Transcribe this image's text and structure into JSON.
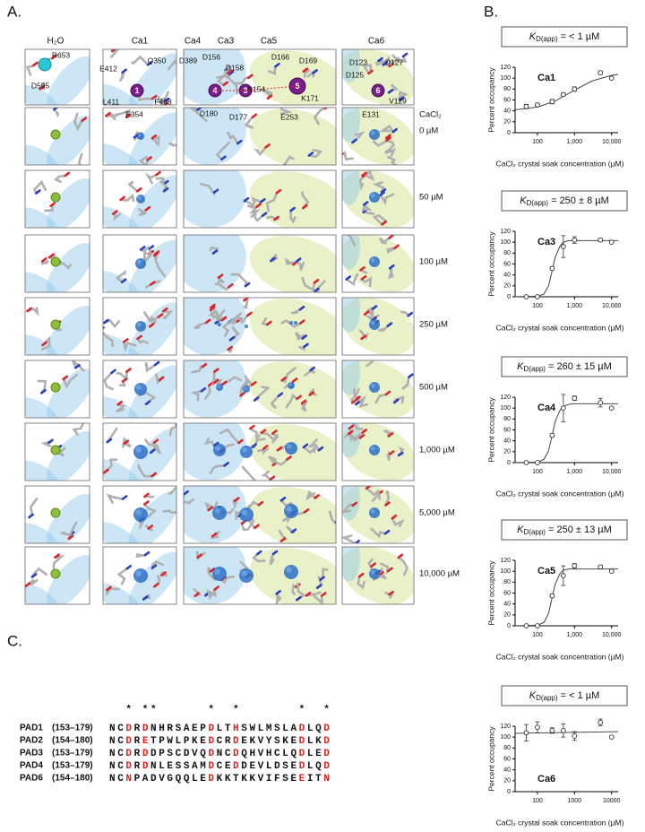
{
  "panel_labels": [
    "A.",
    "B.",
    "C."
  ],
  "panel_a": {
    "column_headers": [
      "H₂O",
      "Ca1",
      "Ca4",
      "Ca3",
      "Ca5",
      "Ca6"
    ],
    "residues": [
      "R653",
      "D595",
      "E412",
      "Q350",
      "L411",
      "F408",
      "E354",
      "D389",
      "D156",
      "D158",
      "D166",
      "D169",
      "N154",
      "D180",
      "D177",
      "E253",
      "K171",
      "D123",
      "D127",
      "D125",
      "V129",
      "E131"
    ],
    "ions": [
      "1",
      "4",
      "3",
      "5",
      "6"
    ],
    "concentration_header": "CaCl₂",
    "concentrations": [
      "0 µM",
      "50 µM",
      "100 µM",
      "250 µM",
      "500 µM",
      "1,000 µM",
      "5,000 µM",
      "10,000 µM"
    ]
  },
  "chart_data": [
    {
      "type": "scatter",
      "title": "Ca1",
      "kd_label": {
        "symbol": "K",
        "subscript": "D(app)",
        "text": " = < 1 µM"
      },
      "ylabel": "Percent occupancy",
      "xlabel": "CaCl₂ crystal soak concentration (µM)",
      "xscale": "log",
      "color": "#333333",
      "x": [
        50,
        100,
        250,
        500,
        1000,
        5000,
        10000
      ],
      "series": [
        {
          "values": [
            48,
            51,
            57,
            70,
            80,
            110,
            100
          ],
          "errors": [
            4,
            3,
            4,
            3,
            4,
            3,
            2
          ]
        }
      ],
      "fit": {
        "x": [
          25,
          100,
          300,
          1000,
          3000,
          10000,
          15000
        ],
        "values": [
          42,
          47,
          58,
          78,
          95,
          105,
          107
        ]
      },
      "xlim": [
        25,
        15000
      ],
      "xticks": [
        100,
        {
          "value": 1000,
          "label": "1,000"
        },
        {
          "value": 10000,
          "label": "10,000"
        }
      ],
      "ylim": [
        0,
        120
      ],
      "yticks": [
        0,
        20,
        40,
        60,
        80,
        100,
        120
      ]
    },
    {
      "type": "scatter",
      "title": "Ca3",
      "kd_label": {
        "symbol": "K",
        "subscript": "D(app)",
        "text": " = 250 ± 8 µM"
      },
      "ylabel": "Percent occupancy",
      "xlabel": "CaCl₂ crystal soak concentration (µM)",
      "xscale": "log",
      "color": "#333333",
      "x": [
        50,
        100,
        250,
        500,
        1000,
        5000,
        10000
      ],
      "series": [
        {
          "values": [
            0,
            0,
            52,
            92,
            104,
            104,
            100
          ],
          "errors": [
            1,
            1,
            3,
            20,
            6,
            3,
            2
          ]
        }
      ],
      "fit": {
        "x": [
          25,
          100,
          150,
          200,
          250,
          300,
          400,
          500,
          700,
          1000,
          10000,
          15000
        ],
        "values": [
          0,
          1,
          5,
          20,
          48,
          72,
          92,
          100,
          103,
          103,
          103,
          103
        ]
      },
      "xlim": [
        25,
        15000
      ],
      "xticks": [
        100,
        {
          "value": 1000,
          "label": "1,000"
        },
        {
          "value": 10000,
          "label": "10,000"
        }
      ],
      "ylim": [
        0,
        120
      ],
      "yticks": [
        0,
        20,
        40,
        60,
        80,
        100,
        120
      ]
    },
    {
      "type": "scatter",
      "title": "Ca4",
      "kd_label": {
        "symbol": "K",
        "subscript": "D(app)",
        "text": " = 260 ± 15 µM"
      },
      "ylabel": "Percent occupancy",
      "xlabel": "CaCl₂ crystal soak concentration (µM)",
      "xscale": "log",
      "color": "#333333",
      "x": [
        50,
        100,
        250,
        500,
        1000,
        5000,
        10000
      ],
      "series": [
        {
          "values": [
            0,
            0,
            50,
            100,
            118,
            110,
            100
          ],
          "errors": [
            1,
            1,
            3,
            25,
            4,
            8,
            2
          ]
        }
      ],
      "fit": {
        "x": [
          25,
          100,
          150,
          200,
          250,
          300,
          400,
          500,
          700,
          1000,
          10000,
          15000
        ],
        "values": [
          0,
          1,
          6,
          22,
          50,
          75,
          95,
          103,
          107,
          108,
          108,
          108
        ]
      },
      "xlim": [
        25,
        15000
      ],
      "xticks": [
        100,
        {
          "value": 1000,
          "label": "1,000"
        },
        {
          "value": 10000,
          "label": "10,000"
        }
      ],
      "ylim": [
        0,
        120
      ],
      "yticks": [
        0,
        20,
        40,
        60,
        80,
        100,
        120
      ]
    },
    {
      "type": "scatter",
      "title": "Ca5",
      "kd_label": {
        "symbol": "K",
        "subscript": "D(app)",
        "text": " = 250 ± 13 µM"
      },
      "ylabel": "Percent occupancy",
      "xlabel": "CaCl₂ crystal soak concentration (µM)",
      "xscale": "log",
      "color": "#333333",
      "x": [
        50,
        100,
        250,
        500,
        1000,
        5000,
        10000
      ],
      "series": [
        {
          "values": [
            0,
            0,
            55,
            92,
            110,
            108,
            100
          ],
          "errors": [
            1,
            1,
            3,
            18,
            4,
            3,
            2
          ]
        }
      ],
      "fit": {
        "x": [
          25,
          100,
          150,
          200,
          250,
          300,
          400,
          500,
          700,
          1000,
          10000,
          15000
        ],
        "values": [
          0,
          1,
          6,
          23,
          52,
          76,
          95,
          102,
          104,
          104,
          104,
          104
        ]
      },
      "xlim": [
        25,
        15000
      ],
      "xticks": [
        100,
        {
          "value": 1000,
          "label": "1,000"
        },
        {
          "value": 10000,
          "label": "10,000"
        }
      ],
      "ylim": [
        0,
        120
      ],
      "yticks": [
        0,
        20,
        40,
        60,
        80,
        100,
        120
      ]
    },
    {
      "type": "scatter",
      "title": "Ca6",
      "kd_label": {
        "symbol": "K",
        "subscript": "D(app)",
        "text": " = < 1 µM"
      },
      "ylabel": "Percent occupancy",
      "xlabel": "CaCl₂ crystal soak concentration (µM)",
      "xscale": "log",
      "color": "#333333",
      "x": [
        50,
        100,
        250,
        500,
        1000,
        5000,
        10000
      ],
      "series": [
        {
          "values": [
            108,
            118,
            112,
            112,
            102,
            127,
            100
          ],
          "errors": [
            15,
            10,
            5,
            12,
            8,
            6,
            2
          ]
        }
      ],
      "fit": {
        "x": [
          25,
          15000
        ],
        "values": [
          107,
          110
        ]
      },
      "xlim": [
        25,
        15000
      ],
      "xticks": [
        100,
        1000,
        10000
      ],
      "ylim": [
        0,
        120
      ],
      "yticks": [
        0,
        20,
        40,
        60,
        80,
        100,
        120
      ]
    }
  ],
  "alignment": {
    "stars": "  * **      *  *       *  *",
    "rows": [
      {
        "name": "PAD1",
        "range": "(153–179)",
        "segments": [
          {
            "text": "NC"
          },
          {
            "text": "D",
            "color": "#e02020"
          },
          {
            "text": "R"
          },
          {
            "text": "D",
            "color": "#e02020"
          },
          {
            "text": "NHRSAEP"
          },
          {
            "text": "D",
            "color": "#e02020"
          },
          {
            "text": "LT"
          },
          {
            "text": "H",
            "color": "#e02020"
          },
          {
            "text": "SWLMSLA"
          },
          {
            "text": "D",
            "color": "#e02020"
          },
          {
            "text": "LQ"
          },
          {
            "text": "D",
            "color": "#e02020"
          }
        ]
      },
      {
        "name": "PAD2",
        "range": "(154–180)",
        "segments": [
          {
            "text": "NC"
          },
          {
            "text": "D",
            "color": "#e02020"
          },
          {
            "text": "R"
          },
          {
            "text": "E",
            "color": "#e02020"
          },
          {
            "text": "TPWLPKE"
          },
          {
            "text": "D",
            "color": "#e02020"
          },
          {
            "text": "CR"
          },
          {
            "text": "D",
            "color": "#e02020"
          },
          {
            "text": "EKVYSKE"
          },
          {
            "text": "D",
            "color": "#e02020"
          },
          {
            "text": "LK"
          },
          {
            "text": "D",
            "color": "#e02020"
          }
        ]
      },
      {
        "name": "PAD3",
        "range": "(153–179)",
        "segments": [
          {
            "text": "NC"
          },
          {
            "text": "D",
            "color": "#e02020"
          },
          {
            "text": "R"
          },
          {
            "text": "D",
            "color": "#e02020"
          },
          {
            "text": "DPSCDVQ"
          },
          {
            "text": "D",
            "color": "#e02020"
          },
          {
            "text": "NC"
          },
          {
            "text": "D",
            "color": "#e02020"
          },
          {
            "text": "QHVHCLQ"
          },
          {
            "text": "D",
            "color": "#e02020"
          },
          {
            "text": "LE"
          },
          {
            "text": "D",
            "color": "#e02020"
          }
        ]
      },
      {
        "name": "PAD4",
        "range": "(153–179)",
        "segments": [
          {
            "text": "NC"
          },
          {
            "text": "D",
            "color": "#e02020"
          },
          {
            "text": "R"
          },
          {
            "text": "D",
            "color": "#e02020"
          },
          {
            "text": "NLESSAM"
          },
          {
            "text": "D",
            "color": "#e02020"
          },
          {
            "text": "CE"
          },
          {
            "text": "D",
            "color": "#e02020"
          },
          {
            "text": "DEVLDSE"
          },
          {
            "text": "D",
            "color": "#e02020"
          },
          {
            "text": "LQ"
          },
          {
            "text": "D",
            "color": "#e02020"
          }
        ]
      },
      {
        "name": "PAD6",
        "range": "(154–180)",
        "segments": [
          {
            "text": "NC"
          },
          {
            "text": "N",
            "color": "#e02020"
          },
          {
            "text": "PADVGQQLE"
          },
          {
            "text": "D",
            "color": "#e02020"
          },
          {
            "text": "KKTKKVIFSE"
          },
          {
            "text": "E",
            "color": "#e02020"
          },
          {
            "text": "IT"
          },
          {
            "text": "N",
            "color": "#e02020"
          }
        ]
      }
    ]
  }
}
